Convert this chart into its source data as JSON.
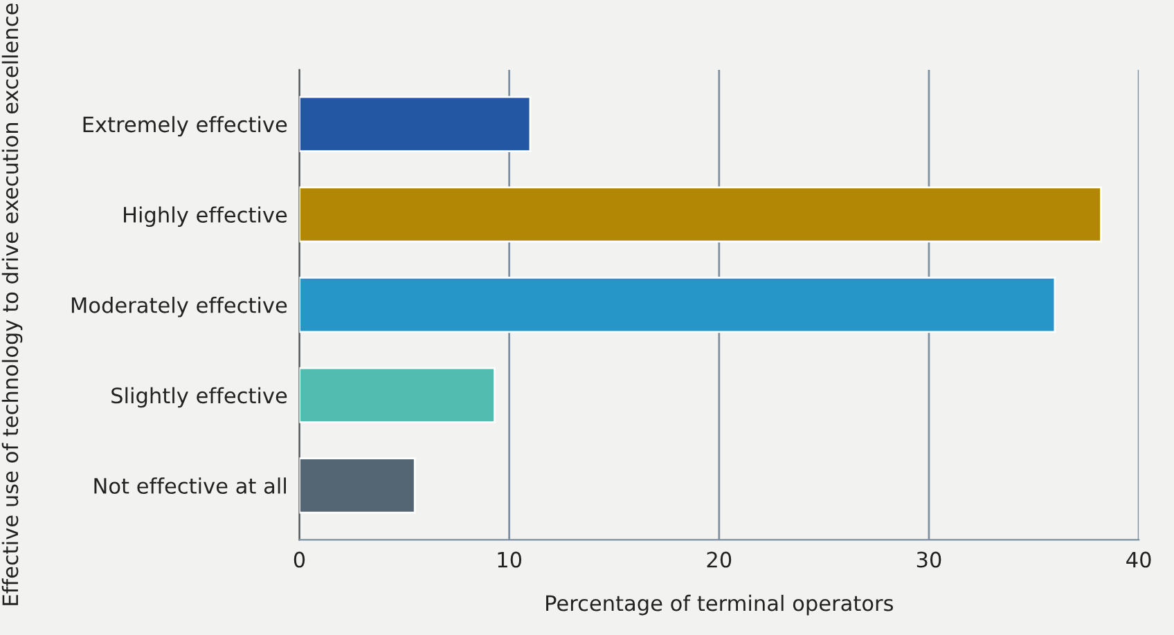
{
  "chart_data": {
    "type": "bar",
    "orientation": "horizontal",
    "categories": [
      "Extremely effective",
      "Highly effective",
      "Moderately effective",
      "Slightly effective",
      "Not effective at all"
    ],
    "values": [
      11.0,
      38.2,
      36.0,
      9.3,
      5.5
    ],
    "colors": [
      "#2457a3",
      "#b38706",
      "#2696c8",
      "#52bcb0",
      "#546674"
    ],
    "xlim": [
      0,
      40
    ],
    "xticks": [
      0,
      10,
      20,
      30,
      40
    ],
    "grid": "x",
    "xlabel": "Percentage of terminal operators",
    "ylabel": "Effective use of technology to drive execution excellence"
  }
}
